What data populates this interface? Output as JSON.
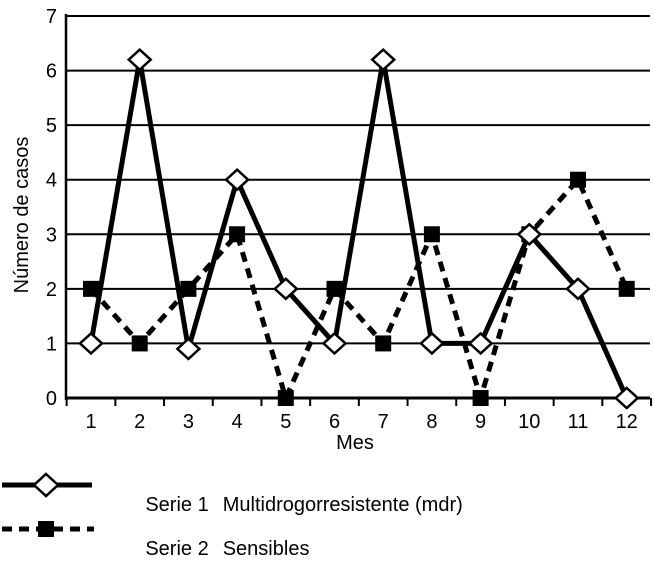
{
  "chart_data": {
    "type": "line",
    "xlabel": "Mes",
    "ylabel": "Número de casos",
    "categories": [
      "1",
      "2",
      "3",
      "4",
      "5",
      "6",
      "7",
      "8",
      "9",
      "10",
      "11",
      "12"
    ],
    "ylim": [
      0,
      7
    ],
    "yticks": [
      "0",
      "1",
      "2",
      "3",
      "4",
      "5",
      "6",
      "7"
    ],
    "grid": "horizontal",
    "legend_position": "bottom",
    "series": [
      {
        "name": "Serie 1  Multidrogorresistente (mdr)",
        "legend_id": "Serie 1",
        "legend_desc": "Multidrogorresistente (mdr)",
        "values": [
          1,
          6.2,
          0.9,
          4,
          2,
          1,
          6.2,
          1,
          1,
          3,
          2,
          0
        ],
        "marker": "open-diamond",
        "line": "solid",
        "color": "#000000"
      },
      {
        "name": "Serie 2  Sensibles",
        "legend_id": "Serie 2",
        "legend_desc": "Sensibles",
        "values": [
          2,
          1,
          2,
          3,
          0,
          2,
          1,
          3,
          0,
          3,
          4,
          2
        ],
        "marker": "filled-square",
        "line": "dashed",
        "color": "#000000"
      }
    ]
  }
}
